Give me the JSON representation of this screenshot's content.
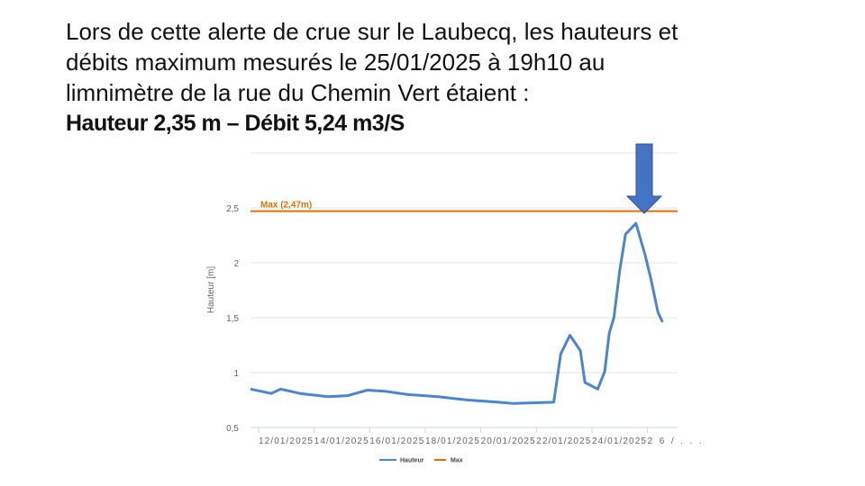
{
  "slide": {
    "title_lines": [
      "Lors de cette alerte de crue sur le Laubecq, les hauteurs et",
      "débits maximum mesurés le 25/01/2025 à 19h10 au",
      "limnimètre de la rue du Chemin Vert étaient :"
    ],
    "highlight": "Hauteur 2,35 m – Débit 5,24 m3/S"
  },
  "annotation": {
    "icon": "down-arrow-icon",
    "color": "#4472C4"
  },
  "chart_data": {
    "type": "line",
    "ylabel": "Hauteur [m]",
    "xlabel": "",
    "ylim": [
      0.5,
      3
    ],
    "xlim": [
      "2025-01-11T17:00",
      "2025-01-27T02:00"
    ],
    "grid": true,
    "legend_placement": "bottom",
    "y_ticks": [
      {
        "v": 0.5,
        "label": "0,5"
      },
      {
        "v": 1,
        "label": "1"
      },
      {
        "v": 1.5,
        "label": "1,5"
      },
      {
        "v": 2,
        "label": "2"
      },
      {
        "v": 2.5,
        "label": "2,5"
      }
    ],
    "x_ticks": [
      {
        "t": "2025-01-12T00:00",
        "label": "12/01/2025"
      },
      {
        "t": "2025-01-14T00:00",
        "label": "14/01/2025"
      },
      {
        "t": "2025-01-16T00:00",
        "label": "16/01/2025"
      },
      {
        "t": "2025-01-18T00:00",
        "label": "18/01/2025"
      },
      {
        "t": "2025-01-20T00:00",
        "label": "20/01/2025"
      },
      {
        "t": "2025-01-22T00:00",
        "label": "22/01/2025"
      },
      {
        "t": "2025-01-24T00:00",
        "label": "24/01/2025"
      },
      {
        "t": "2025-01-26T00:00",
        "label": "26/..."
      }
    ],
    "max_line": {
      "name": "Max",
      "value": 2.47,
      "label": "Max (2,47m)",
      "color": "#E07000"
    },
    "series": [
      {
        "name": "Hauteur",
        "color": "#4A86D0",
        "points": [
          [
            "2025-01-11T17:00",
            0.85
          ],
          [
            "2025-01-12T11:00",
            0.81
          ],
          [
            "2025-01-12T19:00",
            0.85
          ],
          [
            "2025-01-13T12:00",
            0.81
          ],
          [
            "2025-01-14T12:00",
            0.78
          ],
          [
            "2025-01-15T05:00",
            0.79
          ],
          [
            "2025-01-15T22:00",
            0.84
          ],
          [
            "2025-01-16T13:00",
            0.83
          ],
          [
            "2025-01-17T09:00",
            0.8
          ],
          [
            "2025-01-18T11:00",
            0.78
          ],
          [
            "2025-01-19T13:00",
            0.75
          ],
          [
            "2025-01-20T15:00",
            0.73
          ],
          [
            "2025-01-21T04:00",
            0.72
          ],
          [
            "2025-01-22T15:00",
            0.73
          ],
          [
            "2025-01-22T21:00",
            1.17
          ],
          [
            "2025-01-23T05:00",
            1.34
          ],
          [
            "2025-01-23T14:00",
            1.2
          ],
          [
            "2025-01-23T18:00",
            0.91
          ],
          [
            "2025-01-24T05:00",
            0.85
          ],
          [
            "2025-01-24T11:00",
            1.01
          ],
          [
            "2025-01-24T15:00",
            1.36
          ],
          [
            "2025-01-24T19:00",
            1.5
          ],
          [
            "2025-01-25T00:00",
            1.93
          ],
          [
            "2025-01-25T05:00",
            2.26
          ],
          [
            "2025-01-25T14:00",
            2.36
          ],
          [
            "2025-01-25T22:00",
            2.07
          ],
          [
            "2025-01-26T03:00",
            1.85
          ],
          [
            "2025-01-26T09:00",
            1.55
          ],
          [
            "2025-01-26T13:00",
            1.46
          ]
        ]
      }
    ]
  }
}
